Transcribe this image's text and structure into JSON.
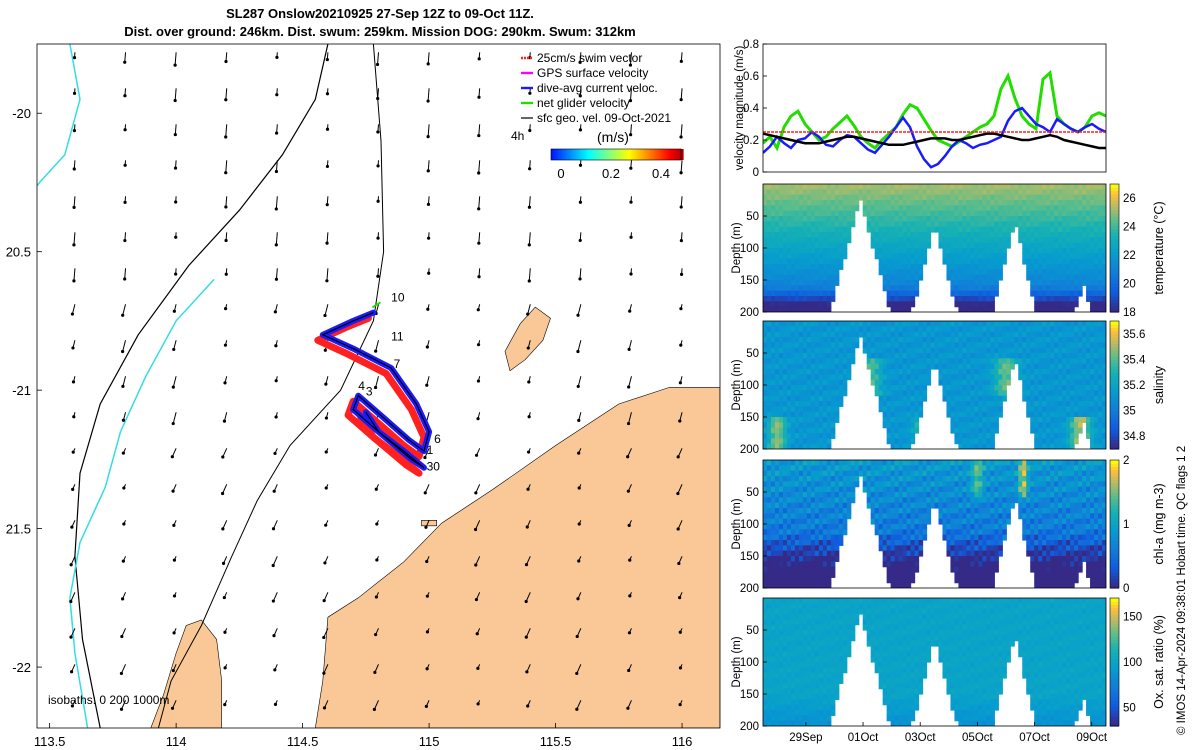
{
  "figure": {
    "title_line1": "SL287 Onslow20210925 27-Sep 12Z to 09-Oct 11Z.",
    "title_line2": "Dist. over ground: 246km. Dist. swum: 259km. Mission DOG: 290km. Swum: 312km",
    "credit": "© IMOS 14-Apr-2024 09:38:01 Hobart time. QC flags 1  2"
  },
  "colors": {
    "land": "#f9c896",
    "isobath_0": "#000000",
    "isobath_200": "#000000",
    "isobath_1000": "#33dde0",
    "gps_velocity": "#ff00ff",
    "swim_vector": "#ff2020",
    "dive_avg_current": "#1a1aff",
    "net_glider_velocity": "#22dd00",
    "sfc_geo_vel": "#000000",
    "black_line": "#000000"
  },
  "chart_data": [
    {
      "type": "map",
      "name": "map",
      "x_ticks": [
        113.5,
        114,
        114.5,
        115,
        115.5,
        116
      ],
      "x_tick_labels": [
        "113.5",
        "114",
        "114.5",
        "115",
        "115.5",
        "116"
      ],
      "y_ticks": [
        -20,
        -20.5,
        -21,
        -21.5,
        -22
      ],
      "y_tick_labels": [
        "-20",
        "20.5",
        "-21",
        "21.5",
        "-22"
      ],
      "xlim": [
        113.45,
        116.15
      ],
      "ylim": [
        -22.22,
        -19.75
      ],
      "legend": [
        {
          "label": "25cm/s swim vector",
          "color": "#ff2020"
        },
        {
          "label": "GPS surface velocity",
          "color": "#ff00ff"
        },
        {
          "label": "dive-avg current veloc.",
          "color": "#1a1aff"
        },
        {
          "label": "net glider velocity",
          "color": "#22dd00"
        },
        {
          "label": "sfc geo. vel. 09-Oct-2021",
          "color": "#000000"
        }
      ],
      "legend_extra": "4h",
      "colorbar_title": "(m/s)",
      "colorbar_ticks": [
        0,
        0.2,
        0.4
      ],
      "colorbar_tick_labels": [
        "0",
        "0.2",
        "0.4"
      ],
      "isobath_label": "isobaths: 0   200  1000m",
      "day_labels": [
        {
          "text": "10",
          "lon": 114.85,
          "lat": -20.68
        },
        {
          "text": "11",
          "lon": 114.85,
          "lat": -20.82
        },
        {
          "text": "7",
          "lon": 114.86,
          "lat": -20.92
        },
        {
          "text": "4",
          "lon": 114.72,
          "lat": -21.0
        },
        {
          "text": "3",
          "lon": 114.75,
          "lat": -21.02
        },
        {
          "text": "6",
          "lon": 115.02,
          "lat": -21.19
        },
        {
          "text": "1",
          "lon": 114.99,
          "lat": -21.23
        },
        {
          "text": "30",
          "lon": 114.99,
          "lat": -21.29
        }
      ]
    },
    {
      "type": "line",
      "name": "velocity magnitude",
      "ylabel": "velocity magnitude (m/s)",
      "ylim": [
        0,
        0.8
      ],
      "y_ticks": [
        0,
        0.2,
        0.4,
        0.6,
        0.8
      ],
      "y_tick_labels": [
        "0",
        "0.2",
        "0.4",
        "0.6",
        "0.8"
      ],
      "x_start_day": 27.5,
      "series": [
        {
          "color": "#22dd00",
          "values": [
            0.18,
            0.22,
            0.15,
            0.28,
            0.35,
            0.38,
            0.3,
            0.25,
            0.2,
            0.22,
            0.27,
            0.31,
            0.35,
            0.29,
            0.22,
            0.18,
            0.15,
            0.2,
            0.24,
            0.28,
            0.36,
            0.42,
            0.4,
            0.33,
            0.26,
            0.2,
            0.18,
            0.16,
            0.19,
            0.22,
            0.25,
            0.28,
            0.3,
            0.35,
            0.52,
            0.6,
            0.46,
            0.35,
            0.3,
            0.27,
            0.58,
            0.62,
            0.35,
            0.3,
            0.27,
            0.25,
            0.28,
            0.35,
            0.37,
            0.35
          ]
        },
        {
          "color": "#1a1aff",
          "values": [
            0.12,
            0.16,
            0.22,
            0.18,
            0.15,
            0.2,
            0.21,
            0.25,
            0.22,
            0.17,
            0.16,
            0.2,
            0.23,
            0.22,
            0.18,
            0.14,
            0.12,
            0.17,
            0.22,
            0.28,
            0.34,
            0.28,
            0.16,
            0.08,
            0.03,
            0.05,
            0.1,
            0.16,
            0.2,
            0.18,
            0.15,
            0.17,
            0.18,
            0.2,
            0.22,
            0.32,
            0.38,
            0.4,
            0.35,
            0.3,
            0.28,
            0.25,
            0.33,
            0.3,
            0.27,
            0.25,
            0.28,
            0.3,
            0.27,
            0.25
          ]
        },
        {
          "color": "#000000",
          "values": [
            0.24,
            0.23,
            0.22,
            0.21,
            0.2,
            0.19,
            0.18,
            0.18,
            0.18,
            0.19,
            0.2,
            0.21,
            0.22,
            0.22,
            0.21,
            0.2,
            0.19,
            0.18,
            0.17,
            0.17,
            0.17,
            0.18,
            0.19,
            0.2,
            0.21,
            0.21,
            0.21,
            0.2,
            0.2,
            0.21,
            0.22,
            0.23,
            0.24,
            0.24,
            0.23,
            0.22,
            0.21,
            0.2,
            0.2,
            0.21,
            0.22,
            0.23,
            0.22,
            0.2,
            0.19,
            0.18,
            0.17,
            0.16,
            0.15,
            0.15
          ]
        },
        {
          "color": "#ff2020",
          "values": [
            0.25,
            0.25,
            0.25,
            0.25,
            0.25,
            0.25,
            0.25,
            0.25,
            0.25,
            0.25,
            0.25,
            0.25,
            0.25,
            0.25,
            0.25,
            0.25,
            0.25,
            0.25,
            0.25,
            0.25,
            0.25,
            0.25,
            0.25,
            0.25,
            0.25,
            0.25,
            0.25,
            0.25,
            0.25,
            0.25,
            0.25,
            0.25,
            0.25,
            0.25,
            0.25,
            0.25,
            0.25,
            0.25,
            0.25,
            0.25,
            0.25,
            0.25,
            0.25,
            0.25,
            0.25,
            0.25,
            0.25,
            0.25,
            0.25,
            0.25
          ]
        }
      ]
    },
    {
      "type": "heatmap",
      "name": "temperature",
      "ylabel": "Depth (m)",
      "colorbar_label": "temperature (°C)",
      "clim": [
        18,
        27
      ],
      "colorbar_ticks": [
        18,
        20,
        22,
        24,
        26
      ],
      "y_ticks": [
        50,
        100,
        150,
        200
      ],
      "y_tick_labels": [
        "50",
        "100",
        "150",
        "200"
      ],
      "ylim": [
        0,
        200
      ]
    },
    {
      "type": "heatmap",
      "name": "salinity",
      "ylabel": "Depth (m)",
      "colorbar_label": "salinity",
      "clim": [
        34.7,
        35.7
      ],
      "colorbar_ticks": [
        34.8,
        35,
        35.2,
        35.4,
        35.6
      ],
      "y_ticks": [
        50,
        100,
        150,
        200
      ],
      "y_tick_labels": [
        "50",
        "100",
        "150",
        "200"
      ],
      "ylim": [
        0,
        200
      ]
    },
    {
      "type": "heatmap",
      "name": "chl-a",
      "ylabel": "Depth (m)",
      "colorbar_label": "chl-a (mg m-3)",
      "clim": [
        0,
        2
      ],
      "colorbar_ticks": [
        0,
        1,
        2
      ],
      "y_ticks": [
        50,
        100,
        150,
        200
      ],
      "y_tick_labels": [
        "50",
        "100",
        "150",
        "200"
      ],
      "ylim": [
        0,
        200
      ]
    },
    {
      "type": "heatmap",
      "name": "oxygen",
      "ylabel": "Depth (m)",
      "colorbar_label": "Ox. sat. ratio (%)",
      "clim": [
        30,
        170
      ],
      "colorbar_ticks": [
        50,
        100,
        150
      ],
      "y_ticks": [
        50,
        100,
        150,
        200
      ],
      "y_tick_labels": [
        "50",
        "100",
        "150",
        "200"
      ],
      "ylim": [
        0,
        200
      ],
      "x_ticks": [
        29,
        31,
        33,
        35,
        37,
        39
      ],
      "x_tick_labels": [
        "29Sep",
        "01Oct",
        "03Oct",
        "05Oct",
        "07Oct",
        "09Oct"
      ]
    }
  ]
}
